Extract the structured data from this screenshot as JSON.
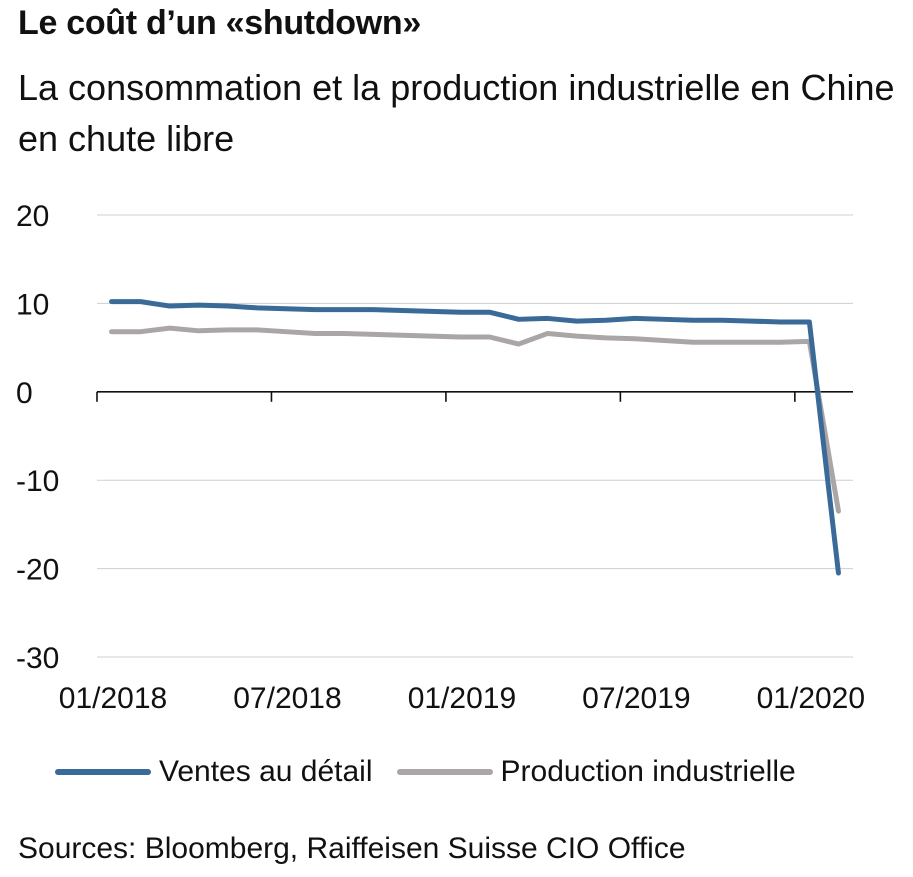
{
  "header": {
    "title": "Le coût d’un «shutdown»",
    "subtitle": "La consommation et la production industrielle en Chine en chute libre"
  },
  "footer": {
    "source": "Sources: Bloomberg, Raiffeisen Suisse CIO Office"
  },
  "chart_data": {
    "type": "line",
    "title": "",
    "xlabel": "",
    "ylabel": "",
    "ylim": [
      -30,
      20
    ],
    "yticks": [
      20,
      10,
      0,
      -10,
      -20,
      -30
    ],
    "xticks": [
      "01/2018",
      "07/2018",
      "01/2019",
      "07/2019",
      "01/2020"
    ],
    "x_month_start": "2018-01",
    "grid": true,
    "legend_position": "bottom",
    "x": [
      "2018-01",
      "2018-02",
      "2018-03",
      "2018-04",
      "2018-05",
      "2018-06",
      "2018-07",
      "2018-08",
      "2018-09",
      "2018-10",
      "2018-11",
      "2018-12",
      "2019-01",
      "2019-02",
      "2019-03",
      "2019-04",
      "2019-05",
      "2019-06",
      "2019-07",
      "2019-08",
      "2019-09",
      "2019-10",
      "2019-11",
      "2019-12",
      "2020-01",
      "2020-02"
    ],
    "series": [
      {
        "name": "Ventes au détail",
        "color": "#3a6a97",
        "values": [
          10.2,
          10.2,
          9.7,
          9.8,
          9.7,
          9.5,
          9.4,
          9.3,
          9.3,
          9.3,
          9.2,
          9.1,
          9.0,
          9.0,
          8.2,
          8.3,
          8.0,
          8.1,
          8.3,
          8.2,
          8.1,
          8.1,
          8.0,
          7.9,
          7.9,
          -20.5
        ]
      },
      {
        "name": "Production industrielle",
        "color": "#aba6a6",
        "values": [
          6.8,
          6.8,
          7.2,
          6.9,
          7.0,
          7.0,
          6.8,
          6.6,
          6.6,
          6.5,
          6.4,
          6.3,
          6.2,
          6.2,
          5.4,
          6.6,
          6.3,
          6.1,
          6.0,
          5.8,
          5.6,
          5.6,
          5.6,
          5.6,
          5.7,
          -13.5
        ]
      }
    ]
  }
}
